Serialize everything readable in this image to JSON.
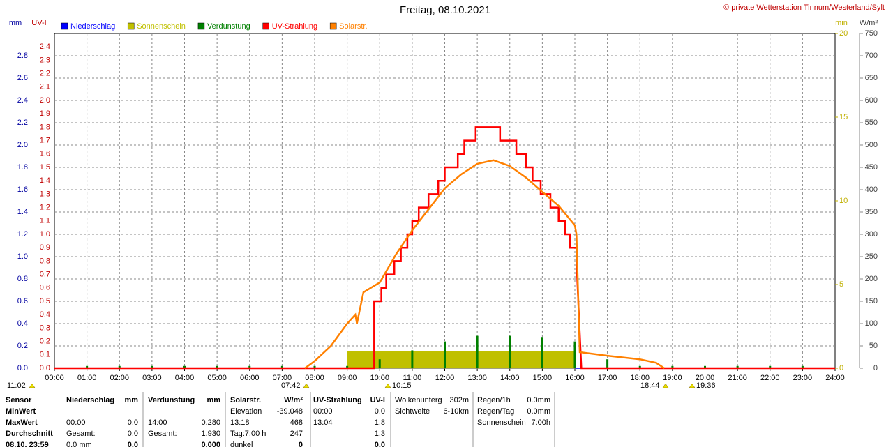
{
  "chart_data": {
    "type": "line",
    "title": "Freitag, 08.10.2021",
    "copyright": "© private Wetterstation Tinnum/Westerland/Sylt",
    "xlim": [
      0,
      24
    ],
    "xticks": [
      {
        "value": 0,
        "label": "00:00"
      },
      {
        "value": 1,
        "label": "01:00"
      },
      {
        "value": 2,
        "label": "02:00"
      },
      {
        "value": 3,
        "label": "03:00"
      },
      {
        "value": 4,
        "label": "04:00"
      },
      {
        "value": 5,
        "label": "05:00"
      },
      {
        "value": 6,
        "label": "06:00"
      },
      {
        "value": 7,
        "label": "07:00"
      },
      {
        "value": 8,
        "label": "08:00"
      },
      {
        "value": 9,
        "label": "09:00"
      },
      {
        "value": 10,
        "label": "10:00"
      },
      {
        "value": 11,
        "label": "11:00"
      },
      {
        "value": 12,
        "label": "12:00"
      },
      {
        "value": 13,
        "label": "13:00"
      },
      {
        "value": 14,
        "label": "14:00"
      },
      {
        "value": 15,
        "label": "15:00"
      },
      {
        "value": 16,
        "label": "16:00"
      },
      {
        "value": 17,
        "label": "17:00"
      },
      {
        "value": 18,
        "label": "18:00"
      },
      {
        "value": 19,
        "label": "19:00"
      },
      {
        "value": 20,
        "label": "20:00"
      },
      {
        "value": 21,
        "label": "21:00"
      },
      {
        "value": 22,
        "label": "22:00"
      },
      {
        "value": 23,
        "label": "23:00"
      },
      {
        "value": 24,
        "label": "24:00"
      }
    ],
    "grid": true,
    "axes": {
      "mm": {
        "label": "mm",
        "color": "#0000a0",
        "side": "left",
        "lim": [
          0,
          3
        ],
        "ticks": [
          {
            "value": 0,
            "label": "0.0"
          },
          {
            "value": 0.2,
            "label": "0.2"
          },
          {
            "value": 0.4,
            "label": "0.4"
          },
          {
            "value": 0.6,
            "label": "0.6"
          },
          {
            "value": 0.8,
            "label": "0.8"
          },
          {
            "value": 1,
            "label": "1.0"
          },
          {
            "value": 1.2,
            "label": "1.2"
          },
          {
            "value": 1.4,
            "label": "1.4"
          },
          {
            "value": 1.6,
            "label": "1.6"
          },
          {
            "value": 1.8,
            "label": "1.8"
          },
          {
            "value": 2,
            "label": "2.0"
          },
          {
            "value": 2.2,
            "label": "2.2"
          },
          {
            "value": 2.4,
            "label": "2.4"
          },
          {
            "value": 2.6,
            "label": "2.6"
          },
          {
            "value": 2.8,
            "label": "2.8"
          }
        ]
      },
      "uv": {
        "label": "UV-I",
        "color": "#c00000",
        "side": "left",
        "lim": [
          0,
          2.5
        ],
        "ticks": [
          {
            "value": 0,
            "label": "0.0"
          },
          0.1,
          0.2,
          0.3,
          0.4,
          0.5,
          0.6,
          0.7,
          0.8,
          0.9,
          {
            "value": 1,
            "label": "1.0"
          },
          1.1,
          1.2,
          1.3,
          1.4,
          1.5,
          1.6,
          1.7,
          1.8,
          1.9,
          {
            "value": 2,
            "label": "2.0"
          },
          2.1,
          2.2,
          2.3,
          2.4
        ]
      },
      "min": {
        "label": "min",
        "color": "#c0b000",
        "side": "right",
        "lim": [
          0,
          20
        ],
        "ticks": [
          0,
          5,
          10,
          15,
          20
        ]
      },
      "w": {
        "label": "W/m²",
        "color": "#404040",
        "side": "right",
        "lim": [
          0,
          750
        ],
        "ticks": [
          0,
          50,
          100,
          150,
          200,
          250,
          300,
          350,
          400,
          450,
          500,
          550,
          600,
          650,
          700,
          750
        ]
      }
    },
    "series": [
      {
        "name": "Niederschlag",
        "color": "#0000ff",
        "kind": "line",
        "axis": "mm",
        "x": [
          0,
          24
        ],
        "values": [
          0,
          0
        ]
      },
      {
        "name": "Sonnenschein",
        "color": "#c0c000",
        "kind": "bar",
        "axis": "min",
        "x": [
          9.0,
          9.5,
          10.0,
          10.5,
          11.0,
          11.5,
          12.0,
          12.5,
          13.0,
          13.5,
          14.0,
          14.5,
          15.0,
          15.5
        ],
        "values": [
          1,
          1,
          1,
          1,
          1,
          1,
          1,
          1,
          1,
          1,
          1,
          1,
          1,
          1
        ]
      },
      {
        "name": "Verdunstung",
        "color": "#008000",
        "kind": "spike",
        "axis": "mm",
        "x": [
          1,
          2,
          3,
          4,
          5,
          6,
          7,
          8,
          9,
          10,
          11,
          12,
          13,
          14,
          15,
          16,
          17,
          18,
          19,
          20,
          21,
          22,
          23
        ],
        "values": [
          0.02,
          0.02,
          0.02,
          0.02,
          0.02,
          0.02,
          0.02,
          0.02,
          0.02,
          0.08,
          0.16,
          0.24,
          0.29,
          0.29,
          0.28,
          0.24,
          0.08,
          0.02,
          0.02,
          0.02,
          0.02,
          0.02,
          0.02
        ]
      },
      {
        "name": "UV-Strahlung",
        "color": "#ff0000",
        "kind": "line",
        "axis": "uv",
        "x": [
          0,
          9.83,
          9.83,
          10.05,
          10.05,
          10.2,
          10.2,
          10.45,
          10.45,
          10.65,
          10.65,
          10.85,
          10.85,
          11.0,
          11.0,
          11.2,
          11.2,
          11.5,
          11.5,
          11.8,
          11.8,
          12.0,
          12.0,
          12.4,
          12.4,
          12.6,
          12.6,
          12.95,
          12.95,
          13.7,
          13.7,
          14.2,
          14.2,
          14.5,
          14.5,
          14.7,
          14.7,
          14.95,
          14.95,
          15.25,
          15.25,
          15.5,
          15.5,
          15.7,
          15.7,
          15.85,
          15.85,
          16.05,
          16.05,
          16.2,
          24
        ],
        "values": [
          0,
          0,
          0.5,
          0.5,
          0.6,
          0.6,
          0.7,
          0.7,
          0.8,
          0.8,
          0.9,
          0.9,
          1.0,
          1.0,
          1.1,
          1.1,
          1.2,
          1.2,
          1.3,
          1.3,
          1.4,
          1.4,
          1.5,
          1.5,
          1.6,
          1.6,
          1.7,
          1.7,
          1.8,
          1.8,
          1.7,
          1.7,
          1.6,
          1.6,
          1.5,
          1.5,
          1.4,
          1.4,
          1.3,
          1.3,
          1.2,
          1.2,
          1.1,
          1.1,
          1.0,
          1.0,
          0.9,
          0.9,
          0.8,
          0,
          0
        ]
      },
      {
        "name": "Solarstr.",
        "color": "#ff8000",
        "kind": "line",
        "axis": "w",
        "x": [
          7.7,
          8.0,
          8.5,
          9.0,
          9.25,
          9.3,
          9.5,
          10.0,
          10.5,
          11.0,
          11.5,
          12.0,
          12.5,
          13.0,
          13.5,
          14.0,
          14.5,
          15.0,
          15.5,
          16.0,
          16.05,
          16.15,
          17.0,
          18.0,
          18.5,
          18.75
        ],
        "values": [
          0,
          16,
          50,
          100,
          120,
          100,
          170,
          192,
          255,
          309,
          356,
          403,
          434,
          458,
          466,
          453,
          427,
          395,
          364,
          320,
          300,
          36,
          28,
          20,
          12,
          0
        ]
      }
    ],
    "annotations": [
      "11:02",
      "07:42",
      "10:15",
      "18:44",
      "19:36"
    ]
  },
  "table": {
    "rows": [
      [
        "Sensor",
        "Niederschlag",
        "mm",
        "Verdunstung",
        "mm",
        "Solarstr.",
        "W/m²",
        "UV-Strahlung",
        "UV-I"
      ],
      [
        "MinWert",
        null,
        null,
        null,
        null,
        "Elevation",
        "-39.048",
        "00:00",
        "0.0"
      ],
      [
        "MaxWert",
        "00:00",
        "0.0",
        "14:00",
        "0.280",
        "13:18",
        "468",
        "13:04",
        "1.8"
      ],
      [
        "Durchschnitt",
        "Gesamt:",
        "0.0",
        "Gesamt:",
        "1.930",
        "Tag:7:00 h",
        "247",
        null,
        "1.3"
      ],
      [
        "08.10. 23:59",
        "0.0 mm",
        "0.0",
        null,
        "0.000",
        "dunkel",
        "0",
        null,
        "0.0"
      ]
    ],
    "extra": [
      [
        [
          "Wolkenunterg",
          "302m"
        ],
        [
          "Sichtweite",
          "6-10km"
        ]
      ],
      [
        [
          "Regen/1h",
          "0.0mm"
        ],
        [
          "Regen/Tag",
          "0.0mm"
        ],
        [
          "Sonnenschein",
          "7:00h"
        ]
      ]
    ]
  }
}
